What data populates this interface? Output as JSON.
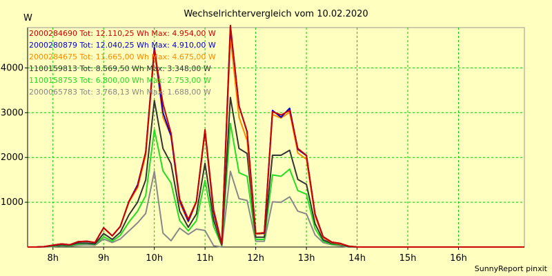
{
  "chart_data": {
    "type": "line",
    "title": "Wechselrichtervergleich vom 10.02.2020",
    "ylabel": "W",
    "xlabel": "",
    "credit": "SunnyReport pinxit",
    "xlim": [
      7.5,
      17.3
    ],
    "ylim": [
      0,
      4900
    ],
    "x_ticks": [
      {
        "value": 8,
        "label": "8h"
      },
      {
        "value": 9,
        "label": "9h"
      },
      {
        "value": 10,
        "label": "10h"
      },
      {
        "value": 11,
        "label": "11h"
      },
      {
        "value": 12,
        "label": "12h"
      },
      {
        "value": 13,
        "label": "13h"
      },
      {
        "value": 14,
        "label": "14h"
      },
      {
        "value": 15,
        "label": "15h"
      },
      {
        "value": 16,
        "label": "16h"
      }
    ],
    "y_ticks": [
      {
        "value": 1000,
        "label": "1000"
      },
      {
        "value": 2000,
        "label": "2000"
      },
      {
        "value": 3000,
        "label": "3000"
      },
      {
        "value": 4000,
        "label": "4000"
      }
    ],
    "grid": true,
    "legend_position": "top-left",
    "x": [
      7.5,
      7.67,
      7.83,
      8.0,
      8.17,
      8.33,
      8.5,
      8.67,
      8.83,
      9.0,
      9.17,
      9.33,
      9.5,
      9.67,
      9.83,
      10.0,
      10.17,
      10.33,
      10.5,
      10.67,
      10.83,
      11.0,
      11.17,
      11.33,
      11.5,
      11.67,
      11.83,
      12.0,
      12.17,
      12.33,
      12.5,
      12.67,
      12.83,
      13.0,
      13.17,
      13.33,
      13.5,
      13.67,
      13.83,
      14.0,
      14.17,
      14.33,
      14.5,
      14.67,
      14.83,
      15.0,
      15.17,
      15.33,
      15.5,
      15.67,
      15.83,
      16.0,
      16.17,
      16.33,
      16.5,
      16.67,
      16.83,
      17.0,
      17.17,
      17.3
    ],
    "series": [
      {
        "name": "2000284690 Tot: 12.110,25 Wh Max: 4.954,00 W",
        "color": "#cc0000",
        "values": [
          0,
          0,
          10,
          40,
          70,
          50,
          120,
          130,
          100,
          430,
          250,
          460,
          1020,
          1360,
          2120,
          4400,
          3200,
          2540,
          1070,
          620,
          1020,
          2620,
          830,
          70,
          4950,
          3150,
          2580,
          300,
          320,
          3020,
          2950,
          3050,
          2200,
          2050,
          730,
          230,
          110,
          80,
          20,
          0,
          0,
          0,
          0,
          0,
          0,
          0,
          0,
          0,
          0,
          0,
          0,
          0,
          0,
          0,
          0,
          0,
          0,
          0,
          0,
          0
        ]
      },
      {
        "name": "2000280879 Tot: 12.040,25 Wh Max: 4.910,00 W",
        "color": "#0000cc",
        "values": [
          0,
          0,
          10,
          40,
          70,
          50,
          120,
          130,
          100,
          430,
          250,
          460,
          1020,
          1390,
          2120,
          4460,
          3000,
          2480,
          1040,
          580,
          1020,
          2600,
          790,
          60,
          4910,
          3150,
          2570,
          300,
          310,
          3050,
          2900,
          3100,
          2180,
          2040,
          740,
          230,
          110,
          80,
          20,
          0,
          0,
          0,
          0,
          0,
          0,
          0,
          0,
          0,
          0,
          0,
          0,
          0,
          0,
          0,
          0,
          0,
          0,
          0,
          0,
          0
        ]
      },
      {
        "name": "2000284675 Tot: 11.665,00 Wh Max: 4.675,00 W",
        "color": "#ff8800",
        "values": [
          0,
          0,
          10,
          40,
          70,
          50,
          120,
          130,
          100,
          430,
          250,
          460,
          1000,
          1330,
          2050,
          4380,
          2900,
          2480,
          990,
          560,
          1000,
          2560,
          740,
          50,
          4680,
          2900,
          2380,
          290,
          300,
          2960,
          2880,
          3010,
          2100,
          1960,
          690,
          210,
          100,
          70,
          20,
          0,
          0,
          0,
          0,
          0,
          0,
          0,
          0,
          0,
          0,
          0,
          0,
          0,
          0,
          0,
          0,
          0,
          0,
          0,
          0,
          0
        ]
      },
      {
        "name": "1100159813 Tot: 8.569,50 Wh Max: 3.348,00 W",
        "color": "#333333",
        "values": [
          0,
          0,
          10,
          30,
          50,
          40,
          90,
          90,
          70,
          300,
          170,
          330,
          720,
          1000,
          1500,
          3270,
          2200,
          1860,
          800,
          440,
          740,
          1870,
          600,
          40,
          3340,
          2200,
          2090,
          220,
          220,
          2050,
          2050,
          2160,
          1510,
          1400,
          520,
          160,
          80,
          60,
          10,
          0,
          0,
          0,
          0,
          0,
          0,
          0,
          0,
          0,
          0,
          0,
          0,
          0,
          0,
          0,
          0,
          0,
          0,
          0,
          0,
          0
        ]
      },
      {
        "name": "1100158753 Tot: 6.800,00 Wh Max: 2.753,00 W",
        "color": "#22dd22",
        "values": [
          0,
          0,
          10,
          20,
          40,
          30,
          70,
          80,
          60,
          230,
          130,
          260,
          560,
          800,
          1150,
          2620,
          1700,
          1430,
          590,
          360,
          590,
          1490,
          460,
          30,
          2760,
          1660,
          1580,
          170,
          170,
          1610,
          1580,
          1740,
          1260,
          1180,
          410,
          130,
          60,
          50,
          10,
          0,
          0,
          0,
          0,
          0,
          0,
          0,
          0,
          0,
          0,
          0,
          0,
          0,
          0,
          0,
          0,
          0,
          0,
          0,
          0,
          0
        ]
      },
      {
        "name": "2000065783 Tot: 3.768,13 Wh Max: 1.688,00 W",
        "color": "#888888",
        "values": [
          0,
          0,
          0,
          10,
          30,
          20,
          40,
          50,
          40,
          180,
          100,
          180,
          360,
          540,
          750,
          1690,
          310,
          140,
          420,
          280,
          400,
          370,
          30,
          0,
          1690,
          1080,
          1040,
          130,
          130,
          1010,
          1000,
          1120,
          800,
          740,
          270,
          100,
          50,
          30,
          0,
          0,
          0,
          0,
          0,
          0,
          0,
          0,
          0,
          0,
          0,
          0,
          0,
          0,
          0,
          0,
          0,
          0,
          0,
          0,
          0,
          0
        ]
      }
    ]
  }
}
